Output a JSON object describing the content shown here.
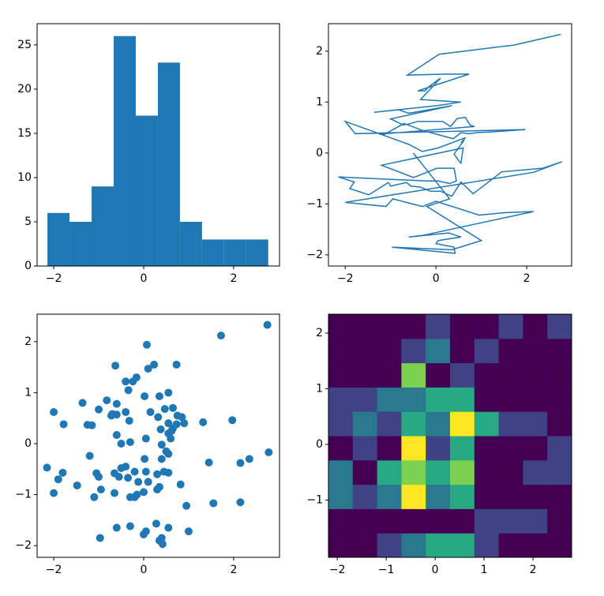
{
  "chart_data": [
    {
      "type": "histogram",
      "color": "#1f77b4",
      "bins": [
        -2.14,
        -1.649,
        -1.158,
        -0.667,
        -0.176,
        0.315,
        0.806,
        1.297,
        1.788,
        2.279,
        2.77
      ],
      "values": [
        6,
        5,
        9,
        26,
        17,
        23,
        5,
        3,
        3,
        3
      ],
      "xlim": [
        -2.37,
        3.02
      ],
      "ylim": [
        0,
        27.4
      ],
      "xticks": [
        {
          "value": -2,
          "label": "−2"
        },
        0,
        2
      ],
      "yticks": [
        0,
        5,
        10,
        15,
        20,
        25
      ]
    },
    {
      "type": "line",
      "color": "#1f77b4",
      "x": [
        2.75,
        1.72,
        0.07,
        -0.63,
        0.23,
        0.73,
        -0.4,
        -0.24,
        -0.16,
        0.1,
        -0.34,
        0.55,
        0.02,
        -1.36,
        -0.82,
        -0.6,
        0.35,
        -1.0,
        -0.72,
        -0.6,
        -0.4,
        0.15,
        0.32,
        0.47,
        0.65,
        0.75,
        0.85,
        -1.25,
        -1.15,
        -0.7,
        -0.32,
        0.38,
        0.55,
        0.73,
        0.9,
        1.32,
        1.97,
        -1.78,
        -2.0,
        -0.6,
        -0.3,
        0.05,
        0.65,
        0.55,
        0.62,
        0.4,
        0.5,
        0.55,
        0.6,
        -1.2,
        -0.5,
        -0.4,
        0.02,
        0.4,
        0.45,
        0.3,
        0.05,
        -0.2,
        -2.15,
        -1.8,
        -1.9,
        -1.48,
        -1.05,
        -1.0,
        -0.65,
        -0.55,
        -0.35,
        -0.12,
        0.1,
        0.35,
        0.55,
        0.82,
        1.45,
        2.35,
        2.78,
        2.15,
        -2.0,
        -1.1,
        -0.95,
        -0.65,
        -0.3,
        -0.15,
        0.0,
        0.95,
        1.55,
        2.15,
        -0.3,
        -0.6,
        0.28,
        0.55,
        0.05,
        0.0,
        0.4,
        0.42,
        -0.97,
        0.35,
        1.0,
        -0.2,
        0.3,
        -0.5
      ],
      "values": [
        2.33,
        2.12,
        1.94,
        1.53,
        1.55,
        1.55,
        1.22,
        1.22,
        1.3,
        1.47,
        1.05,
        1.0,
        0.93,
        0.8,
        0.85,
        0.78,
        0.93,
        0.67,
        0.55,
        0.57,
        0.62,
        0.62,
        0.52,
        0.68,
        0.7,
        0.55,
        0.52,
        0.37,
        0.36,
        0.58,
        0.45,
        0.28,
        0.4,
        0.38,
        0.4,
        0.42,
        0.46,
        0.38,
        0.62,
        0.17,
        0.03,
        0.1,
        0.3,
        0.2,
        0.25,
        -0.02,
        -0.15,
        -0.2,
        0.1,
        -0.24,
        -0.48,
        -0.45,
        -0.3,
        -0.3,
        -0.55,
        -0.6,
        -0.55,
        -0.55,
        -0.47,
        -0.57,
        -0.7,
        -0.82,
        -0.58,
        -0.65,
        -0.58,
        -0.65,
        -0.67,
        -0.75,
        -0.75,
        -0.85,
        -0.57,
        -0.8,
        -0.37,
        -0.3,
        -0.17,
        -0.38,
        -0.97,
        -1.05,
        -0.9,
        -0.97,
        -1.05,
        -1.0,
        -0.95,
        -1.22,
        -1.17,
        -1.15,
        -1.62,
        -1.65,
        -1.57,
        -1.65,
        -1.72,
        -1.78,
        -1.85,
        -1.97,
        -1.85,
        -1.9,
        -1.72,
        -1.05,
        -0.9,
        0.0
      ],
      "xlim": [
        -2.37,
        2.99
      ],
      "ylim": [
        -2.22,
        2.54
      ],
      "xticks": [
        {
          "value": -2,
          "label": "−2"
        },
        0,
        2
      ],
      "yticks": [
        {
          "value": -2,
          "label": "−2"
        },
        {
          "value": -1,
          "label": "−1"
        },
        0,
        1,
        2
      ]
    },
    {
      "type": "scatter",
      "color": "#1f77b4",
      "x": [
        2.75,
        1.72,
        0.07,
        -0.63,
        0.23,
        0.73,
        -0.4,
        -0.24,
        -0.16,
        0.1,
        -0.34,
        0.55,
        0.02,
        -1.36,
        -0.82,
        -0.6,
        0.35,
        -1.0,
        -0.72,
        -0.6,
        -0.4,
        0.15,
        0.32,
        0.47,
        0.65,
        0.75,
        0.85,
        -1.25,
        -1.15,
        -0.7,
        -0.32,
        0.38,
        0.55,
        0.73,
        0.9,
        1.32,
        1.97,
        -1.78,
        -2.0,
        -0.6,
        -0.3,
        0.05,
        0.65,
        0.55,
        0.62,
        0.4,
        0.5,
        0.55,
        0.6,
        -1.2,
        -0.5,
        -0.4,
        0.02,
        0.4,
        0.45,
        0.3,
        0.05,
        -0.2,
        -2.15,
        -1.8,
        -1.9,
        -1.48,
        -1.05,
        -1.0,
        -0.65,
        -0.55,
        -0.35,
        -0.12,
        0.1,
        0.35,
        0.55,
        0.82,
        1.45,
        2.35,
        2.78,
        2.15,
        -2.0,
        -1.1,
        -0.95,
        -0.65,
        -0.3,
        -0.15,
        0.0,
        0.95,
        1.55,
        2.15,
        -0.3,
        -0.6,
        0.28,
        0.55,
        0.05,
        0.0,
        0.4,
        0.42,
        -0.97,
        0.35,
        1.0,
        -0.2,
        0.3,
        -0.5
      ],
      "values": [
        2.33,
        2.12,
        1.94,
        1.53,
        1.55,
        1.55,
        1.22,
        1.22,
        1.3,
        1.47,
        1.05,
        1.0,
        0.93,
        0.8,
        0.85,
        0.78,
        0.93,
        0.67,
        0.55,
        0.57,
        0.62,
        0.62,
        0.52,
        0.68,
        0.7,
        0.55,
        0.52,
        0.37,
        0.36,
        0.58,
        0.45,
        0.28,
        0.4,
        0.38,
        0.4,
        0.42,
        0.46,
        0.38,
        0.62,
        0.17,
        0.03,
        0.1,
        0.3,
        0.2,
        0.25,
        -0.02,
        -0.15,
        -0.2,
        0.1,
        -0.24,
        -0.48,
        -0.45,
        -0.3,
        -0.3,
        -0.55,
        -0.6,
        -0.55,
        -0.55,
        -0.47,
        -0.57,
        -0.7,
        -0.82,
        -0.58,
        -0.65,
        -0.58,
        -0.65,
        -0.67,
        -0.75,
        -0.75,
        -0.85,
        -0.57,
        -0.8,
        -0.37,
        -0.3,
        -0.17,
        -0.38,
        -0.97,
        -1.05,
        -0.9,
        -0.97,
        -1.05,
        -1.0,
        -0.95,
        -1.22,
        -1.17,
        -1.15,
        -1.62,
        -1.65,
        -1.57,
        -1.65,
        -1.72,
        -1.78,
        -1.85,
        -1.97,
        -1.85,
        -1.9,
        -1.72,
        -1.05,
        -0.9,
        0.0
      ],
      "xlim": [
        -2.37,
        3.02
      ],
      "ylim": [
        -2.23,
        2.54
      ],
      "xticks": [
        {
          "value": -2,
          "label": "−2"
        },
        0,
        2
      ],
      "yticks": [
        {
          "value": -2,
          "label": "−2"
        },
        {
          "value": -1,
          "label": "−1"
        },
        0,
        1,
        2
      ]
    },
    {
      "type": "hist2d",
      "colormap": "viridis",
      "xbins": [
        -2.18,
        -1.683,
        -1.186,
        -0.689,
        -0.192,
        0.305,
        0.802,
        1.299,
        1.796,
        2.293,
        2.79
      ],
      "ybins": [
        -2.03,
        -1.593,
        -1.156,
        -0.719,
        -0.282,
        0.155,
        0.592,
        1.029,
        1.466,
        1.903,
        2.34
      ],
      "counts": [
        [
          0,
          0,
          1,
          2,
          3,
          3,
          1,
          0,
          0,
          0
        ],
        [
          0,
          0,
          0,
          0,
          0,
          0,
          1,
          1,
          1,
          0
        ],
        [
          2,
          1,
          2,
          5,
          2,
          3,
          0,
          0,
          0,
          0
        ],
        [
          2,
          0,
          3,
          4,
          3,
          4,
          0,
          0,
          1,
          1
        ],
        [
          0,
          1,
          0,
          5,
          1,
          3,
          0,
          0,
          0,
          1
        ],
        [
          1,
          2,
          1,
          3,
          2,
          5,
          3,
          1,
          1,
          0
        ],
        [
          1,
          1,
          2,
          2,
          3,
          3,
          0,
          0,
          0,
          0
        ],
        [
          0,
          0,
          0,
          4,
          0,
          1,
          0,
          0,
          0,
          0
        ],
        [
          0,
          0,
          0,
          1,
          2,
          0,
          1,
          0,
          0,
          0
        ],
        [
          0,
          0,
          0,
          0,
          1,
          0,
          0,
          1,
          0,
          1
        ]
      ],
      "xlim": [
        -2.18,
        2.79
      ],
      "ylim": [
        -2.03,
        2.34
      ],
      "xticks": [
        {
          "value": -2,
          "label": "−2"
        },
        {
          "value": -1,
          "label": "−1"
        },
        0,
        1,
        2
      ],
      "yticks": [
        {
          "value": -1,
          "label": "−1"
        },
        0,
        1,
        2
      ]
    }
  ]
}
